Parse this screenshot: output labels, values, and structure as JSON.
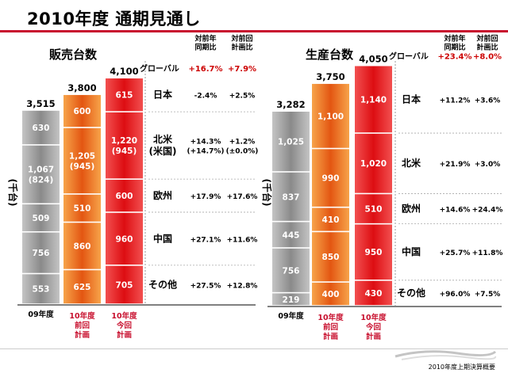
{
  "title": "2010年度 通期見通し",
  "footer": "2010年度上期決算概要",
  "colors": {
    "gray_top": "#c4c4c4",
    "gray_bottom": "#8a8a8a",
    "orange_top": "#f7a44a",
    "orange_bottom": "#e35612",
    "red_top": "#f25050",
    "red_bottom": "#dd0d12",
    "accent": "#c8102e",
    "pct_red": "#cc0000"
  },
  "chart_data": [
    {
      "type": "bar",
      "stacked": true,
      "title": "販売台数",
      "ylabel": "(千台)",
      "col_headers": [
        "対前年\n同期比",
        "対前回\n計画比"
      ],
      "columns": [
        {
          "label": "09年度",
          "total": "3,515",
          "style": "gray"
        },
        {
          "label": "10年度\n前回\n計画",
          "total": "3,800",
          "style": "orange"
        },
        {
          "label": "10年度\n今回\n計画",
          "total": "4,100",
          "style": "red"
        }
      ],
      "series": [
        {
          "name": "その他",
          "values": [
            553,
            625,
            705
          ],
          "labels": [
            "553",
            "625",
            "705"
          ],
          "yoy": "+27.5%",
          "vs_plan": "+12.8%"
        },
        {
          "name": "中国",
          "values": [
            756,
            860,
            960
          ],
          "labels": [
            "756",
            "860",
            "960"
          ],
          "yoy": "+27.1%",
          "vs_plan": "+11.6%"
        },
        {
          "name": "欧州",
          "values": [
            509,
            510,
            600
          ],
          "labels": [
            "509",
            "510",
            "600"
          ],
          "yoy": "+17.9%",
          "vs_plan": "+17.6%"
        },
        {
          "name": "北米\n(米国)",
          "values": [
            1067,
            1205,
            1220
          ],
          "labels": [
            "1,067\n(824)",
            "1,205\n(945)",
            "1,220\n(945)"
          ],
          "yoy": "+14.3%\n(+14.7%)",
          "vs_plan": "+1.2%\n(±0.0%)"
        },
        {
          "name": "日本",
          "values": [
            630,
            600,
            615
          ],
          "labels": [
            "630",
            "600",
            "615"
          ],
          "yoy": "-2.4%",
          "vs_plan": "+2.5%"
        }
      ],
      "global": {
        "label": "グローバル",
        "yoy": "+16.7%",
        "vs_plan": "+7.9%"
      }
    },
    {
      "type": "bar",
      "stacked": true,
      "title": "生産台数",
      "ylabel": "(千台)",
      "col_headers": [
        "対前年\n同期比",
        "対前回\n計画比"
      ],
      "columns": [
        {
          "label": "09年度",
          "total": "3,282",
          "style": "gray"
        },
        {
          "label": "10年度\n前回\n計画",
          "total": "3,750",
          "style": "orange"
        },
        {
          "label": "10年度\n今回\n計画",
          "total": "4,050",
          "style": "red"
        }
      ],
      "series": [
        {
          "name": "その他",
          "values": [
            219,
            400,
            430
          ],
          "labels": [
            "219",
            "400",
            "430"
          ],
          "yoy": "+96.0%",
          "vs_plan": "+7.5%"
        },
        {
          "name": "中国",
          "values": [
            756,
            850,
            950
          ],
          "labels": [
            "756",
            "850",
            "950"
          ],
          "yoy": "+25.7%",
          "vs_plan": "+11.8%"
        },
        {
          "name": "欧州",
          "values": [
            445,
            410,
            510
          ],
          "labels": [
            "445",
            "410",
            "510"
          ],
          "yoy": "+14.6%",
          "vs_plan": "+24.4%"
        },
        {
          "name": "北米",
          "values": [
            837,
            990,
            1020
          ],
          "labels": [
            "837",
            "990",
            "1,020"
          ],
          "yoy": "+21.9%",
          "vs_plan": "+3.0%"
        },
        {
          "name": "日本",
          "values": [
            1025,
            1100,
            1140
          ],
          "labels": [
            "1,025",
            "1,100",
            "1,140"
          ],
          "yoy": "+11.2%",
          "vs_plan": "+3.6%"
        }
      ],
      "global": {
        "label": "グローバル",
        "yoy": "+23.4%",
        "vs_plan": "+8.0%"
      }
    }
  ]
}
